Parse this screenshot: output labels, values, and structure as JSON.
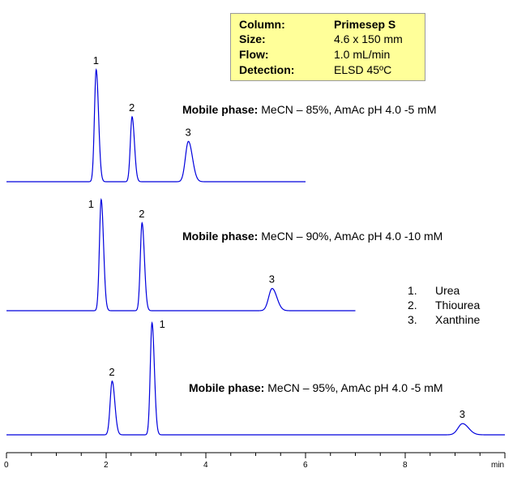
{
  "info_box": {
    "rows": [
      {
        "key": "Column:",
        "value": "Primesep S"
      },
      {
        "key": "Size:",
        "value": "4.6 x 150 mm"
      },
      {
        "key": "Flow:",
        "value": "1.0 mL/min"
      },
      {
        "key": "Detection:",
        "value": "ELSD 45ºC"
      }
    ]
  },
  "legend": [
    {
      "num": "1.",
      "name": "Urea"
    },
    {
      "num": "2.",
      "name": "Thiourea"
    },
    {
      "num": "3.",
      "name": "Xanthine"
    }
  ],
  "colors": {
    "trace": "#0000dd",
    "axis": "#000000",
    "box": "#ffff99"
  },
  "chart_data": {
    "type": "line",
    "title": "",
    "xlabel": "min",
    "xlim": [
      0,
      10
    ],
    "xticks": [
      0,
      2,
      4,
      6,
      8
    ],
    "grid": false,
    "series": [
      {
        "mobile_phase_label": "Mobile phase:",
        "mobile_phase": "MeCN – 85%, AmAc pH 4.0 -5 mM",
        "x_end": 6.0,
        "peaks": [
          {
            "label": "1",
            "rt": 1.8,
            "height": 1.0,
            "width": 0.035
          },
          {
            "label": "2",
            "rt": 2.52,
            "height": 0.58,
            "width": 0.035
          },
          {
            "label": "3",
            "rt": 3.65,
            "height": 0.36,
            "width": 0.06
          }
        ]
      },
      {
        "mobile_phase_label": "Mobile phase:",
        "mobile_phase": "MeCN – 90%, AmAc pH 4.0 -10 mM",
        "x_end": 7.0,
        "peaks": [
          {
            "label": "1",
            "rt": 1.9,
            "height": 1.0,
            "width": 0.035
          },
          {
            "label": "2",
            "rt": 2.72,
            "height": 0.79,
            "width": 0.035
          },
          {
            "label": "3",
            "rt": 5.33,
            "height": 0.2,
            "width": 0.07
          }
        ]
      },
      {
        "mobile_phase_label": "Mobile phase:",
        "mobile_phase": "MeCN – 95%, AmAc pH 4.0 -5 mM",
        "x_end": 10.0,
        "peaks": [
          {
            "label": "2",
            "rt": 2.12,
            "height": 0.48,
            "width": 0.04
          },
          {
            "label": "1",
            "rt": 2.92,
            "height": 1.0,
            "width": 0.035
          },
          {
            "label": "3",
            "rt": 9.15,
            "height": 0.1,
            "width": 0.09
          }
        ]
      }
    ]
  }
}
